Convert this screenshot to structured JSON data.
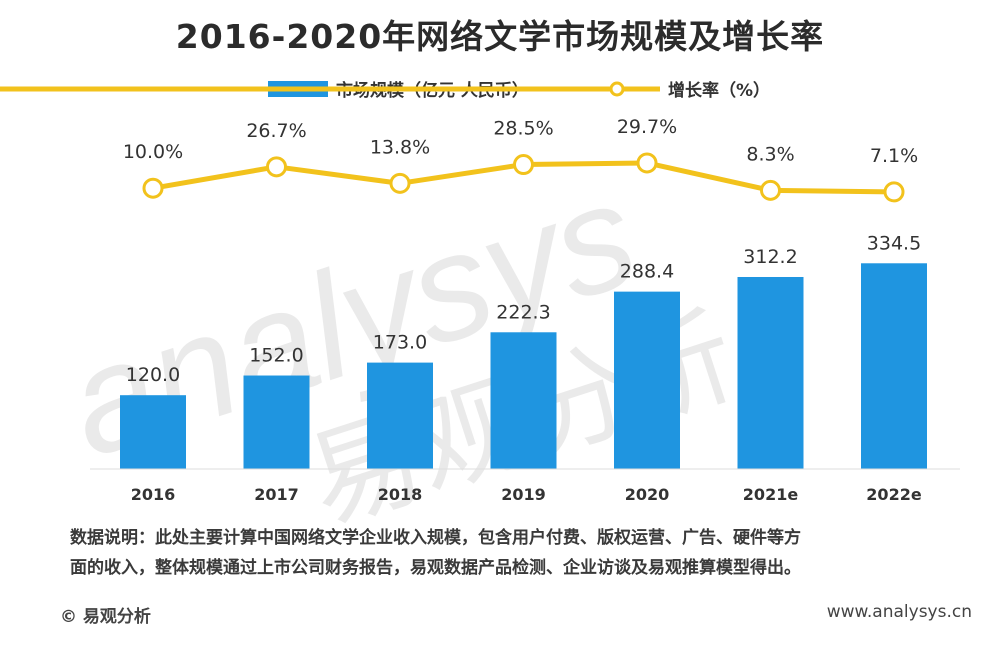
{
  "chart_data": {
    "type": "bar",
    "title": "2016-2020年网络文学市场规模及增长率",
    "categories": [
      "2016",
      "2017",
      "2018",
      "2019",
      "2020",
      "2021e",
      "2022e"
    ],
    "series": [
      {
        "name": "市场规模（亿元 人民币）",
        "type": "bar",
        "values": [
          120.0,
          152.0,
          173.0,
          222.3,
          288.4,
          312.2,
          334.5
        ],
        "labels": [
          "120.0",
          "152.0",
          "173.0",
          "222.3",
          "288.4",
          "312.2",
          "334.5"
        ]
      },
      {
        "name": "增长率（%）",
        "type": "line",
        "values": [
          10.0,
          26.7,
          13.8,
          28.5,
          29.7,
          8.3,
          7.1
        ],
        "labels": [
          "10.0%",
          "26.7%",
          "13.8%",
          "28.5%",
          "29.7%",
          "8.3%",
          "7.1%"
        ]
      }
    ],
    "colors": {
      "bar": "#1f95e0",
      "line": "#f2c21c",
      "marker_fill": "#ffffff"
    },
    "legend_position": "top-center",
    "grid": false
  },
  "note": {
    "line1": "数据说明：此处主要计算中国网络文学企业收入规模，包含用户付费、版权运营、广告、硬件等方",
    "line2": "面的收入，整体规模通过上市公司财务报告，易观数据产品检测、企业访谈及易观推算模型得出。"
  },
  "footer": {
    "source": "© 易观分析",
    "url": "www.analysys.cn"
  },
  "watermark": {
    "text": "analysys",
    "cn_text": "易观分析"
  }
}
